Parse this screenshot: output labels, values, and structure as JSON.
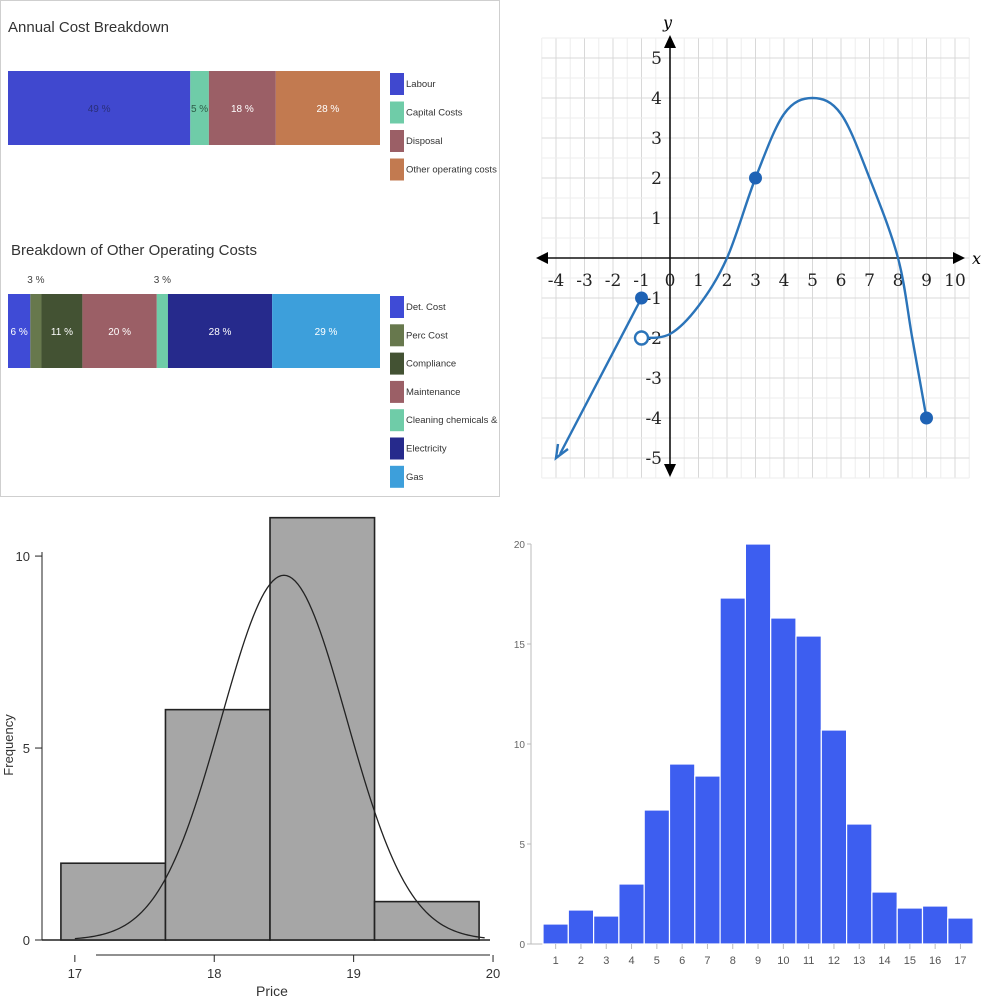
{
  "chart_data": [
    {
      "type": "bar",
      "orientation": "horizontal-stacked",
      "title": "Annual Cost Breakdown",
      "segments": [
        {
          "label": "Labour",
          "value": 49,
          "display": "49 %",
          "color": "#4048cf"
        },
        {
          "label": "Capital Costs",
          "value": 5,
          "display": "5 %",
          "color": "#6fcca8"
        },
        {
          "label": "Disposal",
          "value": 18,
          "display": "18 %",
          "color": "#9b5f66"
        },
        {
          "label": "Other operating costs",
          "value": 28,
          "display": "28 %",
          "color": "#c27a50"
        }
      ],
      "legend": "right"
    },
    {
      "type": "bar",
      "orientation": "horizontal-stacked",
      "title": "Breakdown of Other Operating Costs",
      "segments": [
        {
          "label": "Det. Cost",
          "value": 6,
          "display": "6 %",
          "color": "#3f4bd6"
        },
        {
          "label": "Perc Cost",
          "value": 3,
          "display": "3 %",
          "color": "#67784d"
        },
        {
          "label": "Compliance",
          "value": 11,
          "display": "11 %",
          "color": "#435233"
        },
        {
          "label": "Maintenance",
          "value": 20,
          "display": "20 %",
          "color": "#9b5f66"
        },
        {
          "label": "Cleaning chemicals & Filters",
          "value": 3,
          "display": "3 %",
          "color": "#6fcca8"
        },
        {
          "label": "Electricity",
          "value": 28,
          "display": "28 %",
          "color": "#262a8c"
        },
        {
          "label": "Gas",
          "value": 29,
          "display": "29 %",
          "color": "#3d9fdb"
        }
      ],
      "legend": "right"
    },
    {
      "type": "line",
      "xlabel": "x",
      "ylabel": "y",
      "xlim": [
        -4,
        10
      ],
      "ylim": [
        -5,
        5
      ],
      "xticks": [
        "-4",
        "-3",
        "-2",
        "-1",
        "0",
        "1",
        "2",
        "3",
        "4",
        "5",
        "6",
        "7",
        "8",
        "9",
        "10"
      ],
      "yticks": [
        "5",
        "4",
        "3",
        "2",
        "1",
        "-1",
        "-2",
        "-3",
        "-4",
        "-5"
      ],
      "grid": true,
      "color": "#2b74b9",
      "pieces": [
        {
          "from": [
            -4,
            -5
          ],
          "to": [
            -1,
            -1
          ],
          "arrow_at_start": true,
          "end_closed": true
        },
        {
          "points": [
            [
              -1,
              -2
            ],
            [
              0,
              -1.9
            ],
            [
              1,
              -1.2
            ],
            [
              2,
              0
            ],
            [
              3,
              2
            ],
            [
              4,
              3.6
            ],
            [
              5,
              4
            ],
            [
              6,
              3.6
            ],
            [
              7,
              2
            ],
            [
              8,
              0
            ],
            [
              8.5,
              -2
            ],
            [
              9,
              -4
            ]
          ],
          "start_open": true,
          "end_closed": true
        }
      ],
      "marked_points": [
        {
          "x": -1,
          "y": -1,
          "style": "closed"
        },
        {
          "x": -1,
          "y": -2,
          "style": "open"
        },
        {
          "x": 3,
          "y": 2,
          "style": "closed"
        },
        {
          "x": 9,
          "y": -4,
          "style": "closed"
        }
      ]
    },
    {
      "type": "bar",
      "subtype": "histogram",
      "xlabel": "Price",
      "ylabel": "Frequency",
      "xlim": [
        16.75,
        20.05
      ],
      "ylim": [
        0,
        11.2
      ],
      "xticks": [
        "17",
        "18",
        "19",
        "20"
      ],
      "yticks": [
        "0",
        "5",
        "10"
      ],
      "bins": [
        {
          "from": 16.9,
          "to": 17.65,
          "count": 2
        },
        {
          "from": 17.65,
          "to": 18.4,
          "count": 6
        },
        {
          "from": 18.4,
          "to": 19.15,
          "count": 11
        },
        {
          "from": 19.15,
          "to": 19.9,
          "count": 1
        }
      ],
      "normal_curve": {
        "mean": 18.5,
        "sd": 0.45,
        "peak": 9.5
      },
      "color": "#a6a6a6"
    },
    {
      "type": "bar",
      "categories": [
        "1",
        "2",
        "3",
        "4",
        "5",
        "6",
        "7",
        "8",
        "9",
        "10",
        "11",
        "12",
        "13",
        "14",
        "15",
        "16",
        "17"
      ],
      "values": [
        1,
        1.7,
        1.4,
        3,
        6.7,
        9,
        8.4,
        17.3,
        20,
        16.3,
        15.4,
        10.7,
        6,
        2.6,
        1.8,
        1.9,
        1.3
      ],
      "ylim": [
        0,
        20
      ],
      "yticks": [
        "0",
        "5",
        "10",
        "15",
        "20"
      ],
      "color": "#3d5ef0"
    }
  ]
}
